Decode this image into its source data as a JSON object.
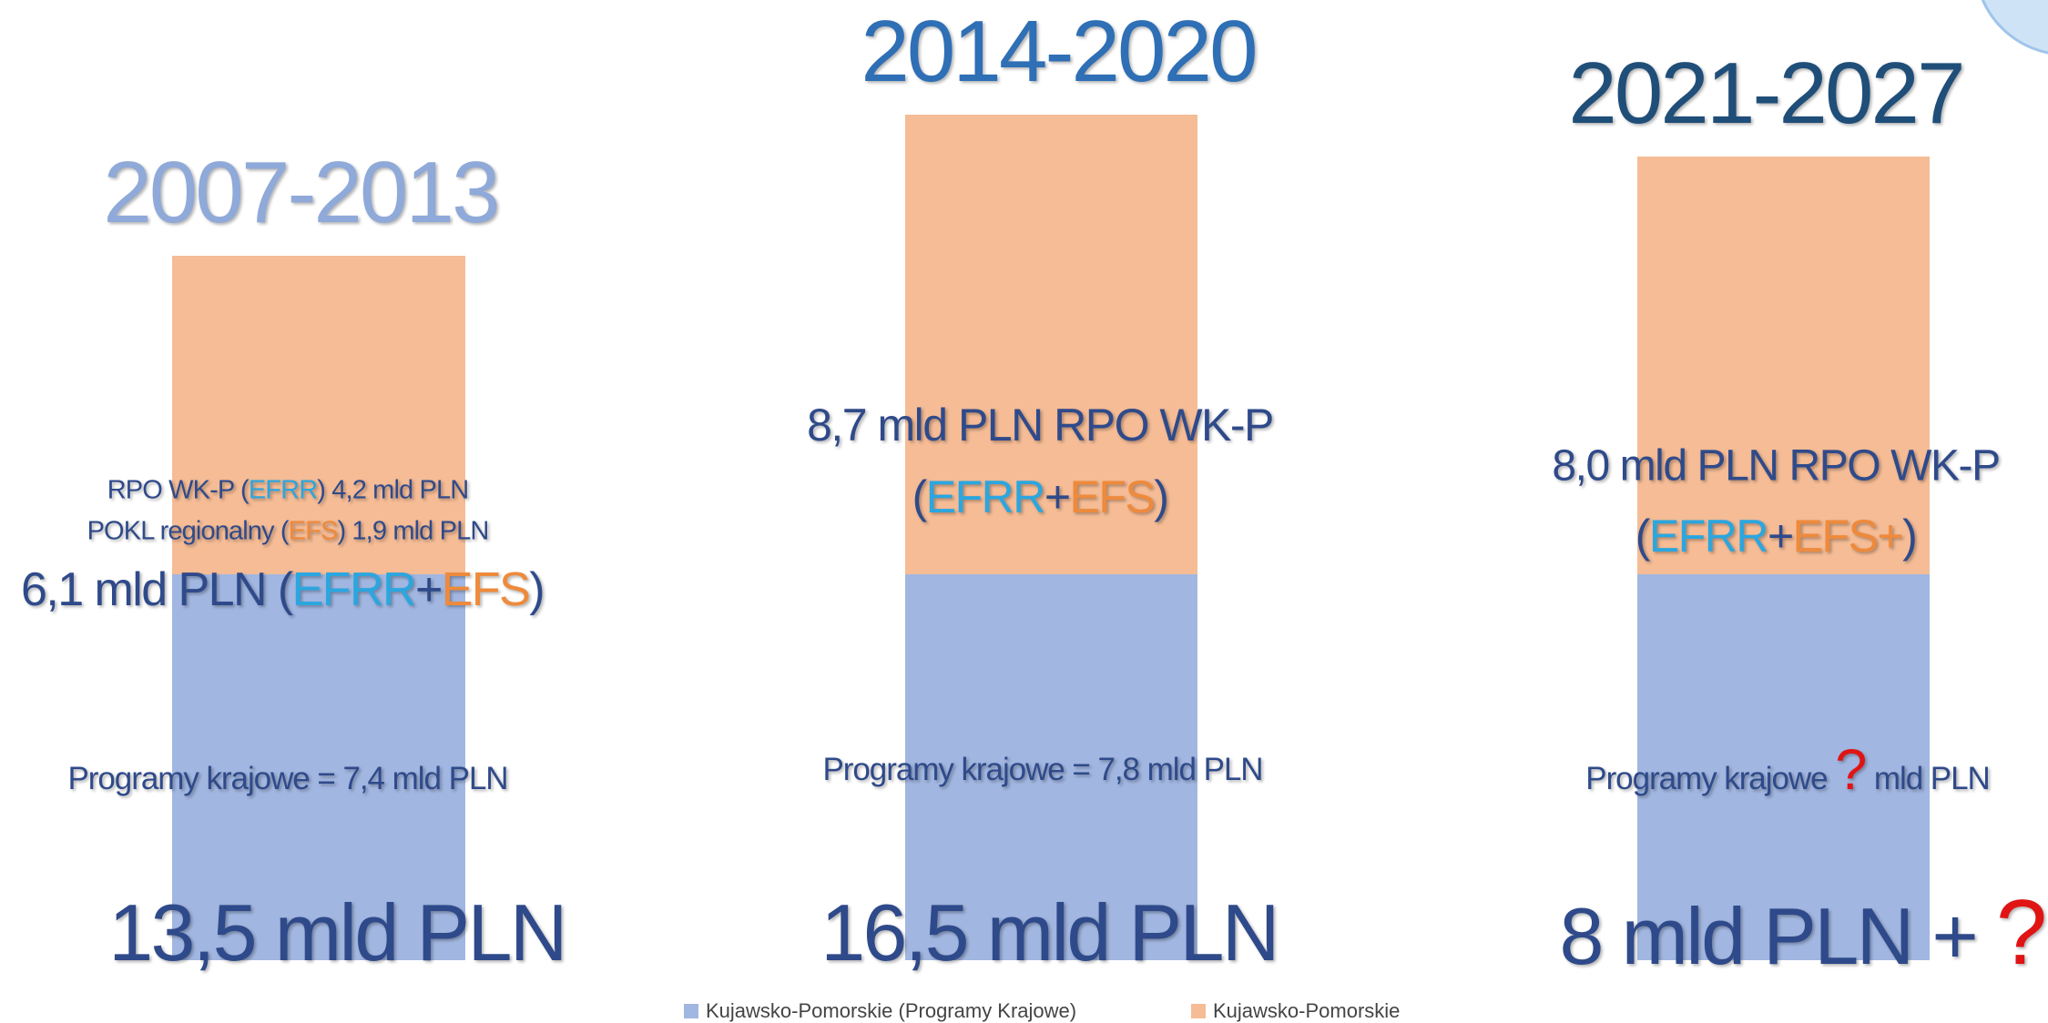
{
  "columns": [
    {
      "period": "2007-2013",
      "detail": [
        [
          "RPO WK-P (",
          "EFRR",
          ") 4,2 mld PLN"
        ],
        [
          "POKL regionalny (",
          "EFS",
          ") 1,9 mld PLN"
        ]
      ],
      "regional": [
        "6,1 mld PLN (",
        "EFRR",
        "+",
        "EFS",
        ")"
      ],
      "national": [
        "Programy krajowe = 7,4 mld PLN"
      ],
      "total": [
        "13,5 mld PLN"
      ]
    },
    {
      "period": "2014-2020",
      "regional": [
        "8,7 mld PLN RPO WK-P",
        "(",
        "EFRR",
        "+",
        "EFS",
        ")"
      ],
      "national": [
        "Programy krajowe = 7,8 mld PLN"
      ],
      "total": [
        "16,5 mld PLN"
      ]
    },
    {
      "period": "2021-2027",
      "regional": [
        "8,0 mld PLN RPO WK-P",
        "(",
        "EFRR",
        "+",
        "EFS+",
        ")"
      ],
      "national": [
        "Programy krajowe ",
        "?",
        " mld PLN"
      ],
      "total": [
        "8 mld PLN + ",
        "?"
      ]
    }
  ],
  "legend": [
    "Kujawsko-Pomorskie (Programy Krajowe)",
    "Kujawsko-Pomorskie"
  ]
}
